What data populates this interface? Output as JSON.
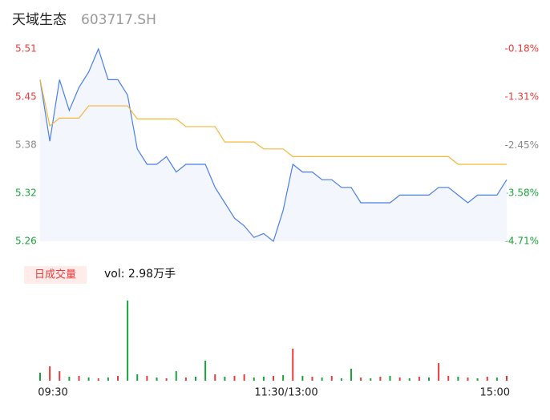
{
  "header": {
    "title": "天域生态",
    "code": "603717.SH"
  },
  "volume_label": "日成交量",
  "volume_text": "vol: 2.98万手",
  "chart_data": [
    {
      "type": "line",
      "x": [
        0,
        5,
        10,
        15,
        20,
        25,
        30,
        35,
        40,
        45,
        50,
        55,
        60,
        65,
        70,
        75,
        80,
        85,
        90,
        95,
        100,
        105,
        110,
        115,
        120,
        125,
        130,
        135,
        140,
        145,
        150,
        155,
        160,
        165,
        170,
        175,
        180,
        185,
        190,
        195,
        200,
        205,
        210,
        215,
        220,
        225,
        230,
        235,
        240
      ],
      "xlim": [
        0,
        240
      ],
      "series": [
        {
          "name": "price",
          "color": "#4a7ee8",
          "values": [
            5.47,
            5.39,
            5.47,
            5.43,
            5.46,
            5.48,
            5.51,
            5.47,
            5.47,
            5.45,
            5.38,
            5.36,
            5.36,
            5.37,
            5.35,
            5.36,
            5.36,
            5.36,
            5.33,
            5.31,
            5.29,
            5.28,
            5.265,
            5.27,
            5.26,
            5.3,
            5.36,
            5.35,
            5.35,
            5.34,
            5.34,
            5.33,
            5.33,
            5.31,
            5.31,
            5.31,
            5.31,
            5.32,
            5.32,
            5.32,
            5.32,
            5.33,
            5.33,
            5.32,
            5.31,
            5.32,
            5.32,
            5.32,
            5.34
          ]
        },
        {
          "name": "average",
          "color": "#f5b63b",
          "values": [
            5.47,
            5.41,
            5.42,
            5.42,
            5.42,
            5.436,
            5.436,
            5.436,
            5.436,
            5.436,
            5.419,
            5.419,
            5.419,
            5.419,
            5.419,
            5.409,
            5.409,
            5.409,
            5.409,
            5.389,
            5.389,
            5.389,
            5.389,
            5.38,
            5.38,
            5.38,
            5.37,
            5.37,
            5.37,
            5.37,
            5.37,
            5.37,
            5.37,
            5.37,
            5.37,
            5.37,
            5.37,
            5.37,
            5.37,
            5.37,
            5.37,
            5.37,
            5.37,
            5.36,
            5.36,
            5.36,
            5.36,
            5.36,
            5.36
          ]
        }
      ],
      "ylim": [
        5.26,
        5.51
      ],
      "yticks": [
        {
          "value": 5.51,
          "label": "5.51"
        },
        {
          "value": 5.4475,
          "label": "5.45"
        },
        {
          "value": 5.385,
          "label": "5.38"
        },
        {
          "value": 5.3225,
          "label": "5.32"
        },
        {
          "value": 5.26,
          "label": "5.26"
        }
      ],
      "ytick_colors": [
        "#e83b3b",
        "#e83b3b",
        "#888888",
        "#1aa33a",
        "#1aa33a"
      ],
      "y2lim": [
        -4.71,
        -0.18
      ],
      "y2ticks": [
        {
          "value": -0.18,
          "label": "-0.18%"
        },
        {
          "value": -1.31,
          "label": "-1.31%"
        },
        {
          "value": -2.45,
          "label": "-2.45%"
        },
        {
          "value": -3.58,
          "label": "-3.58%"
        },
        {
          "value": -4.71,
          "label": "-4.71%"
        }
      ],
      "y2tick_colors": [
        "#e83b3b",
        "#e83b3b",
        "#888888",
        "#1aa33a",
        "#1aa33a"
      ],
      "grid": false
    },
    {
      "type": "bar",
      "x": [
        0,
        5,
        10,
        15,
        20,
        25,
        30,
        35,
        40,
        45,
        50,
        55,
        60,
        65,
        70,
        75,
        80,
        85,
        90,
        95,
        100,
        105,
        110,
        115,
        120,
        125,
        130,
        135,
        140,
        145,
        150,
        155,
        160,
        165,
        170,
        175,
        180,
        185,
        190,
        195,
        200,
        205,
        210,
        215,
        220,
        225,
        230,
        235,
        240
      ],
      "xlim": [
        0,
        240
      ],
      "xticks": [
        {
          "value": 0,
          "label": "09:30"
        },
        {
          "value": 120,
          "label": "11:30/13:00"
        },
        {
          "value": 240,
          "label": "15:00"
        }
      ],
      "ylim": [
        0,
        100
      ],
      "values": [
        10,
        18,
        12,
        5,
        6,
        4,
        3,
        4,
        6,
        100,
        8,
        6,
        4,
        3,
        12,
        4,
        5,
        25,
        8,
        5,
        6,
        8,
        4,
        5,
        6,
        7,
        40,
        6,
        5,
        4,
        6,
        3,
        15,
        4,
        3,
        5,
        6,
        4,
        3,
        5,
        4,
        22,
        6,
        5,
        4,
        3,
        5,
        4,
        6
      ],
      "colors": [
        "#1aa33a",
        "#e83b3b",
        "#e83b3b",
        "#1aa33a",
        "#e83b3b",
        "#1aa33a",
        "#e83b3b",
        "#1aa33a",
        "#e83b3b",
        "#1aa33a",
        "#1aa33a",
        "#e83b3b",
        "#1aa33a",
        "#e83b3b",
        "#1aa33a",
        "#e83b3b",
        "#1aa33a",
        "#1aa33a",
        "#e83b3b",
        "#1aa33a",
        "#e83b3b",
        "#e83b3b",
        "#1aa33a",
        "#1aa33a",
        "#e83b3b",
        "#1aa33a",
        "#e83b3b",
        "#1aa33a",
        "#e83b3b",
        "#1aa33a",
        "#e83b3b",
        "#1aa33a",
        "#1aa33a",
        "#e83b3b",
        "#1aa33a",
        "#e83b3b",
        "#1aa33a",
        "#e83b3b",
        "#1aa33a",
        "#e83b3b",
        "#1aa33a",
        "#e83b3b",
        "#e83b3b",
        "#1aa33a",
        "#e83b3b",
        "#1aa33a",
        "#e83b3b",
        "#1aa33a",
        "#e83b3b"
      ]
    }
  ]
}
